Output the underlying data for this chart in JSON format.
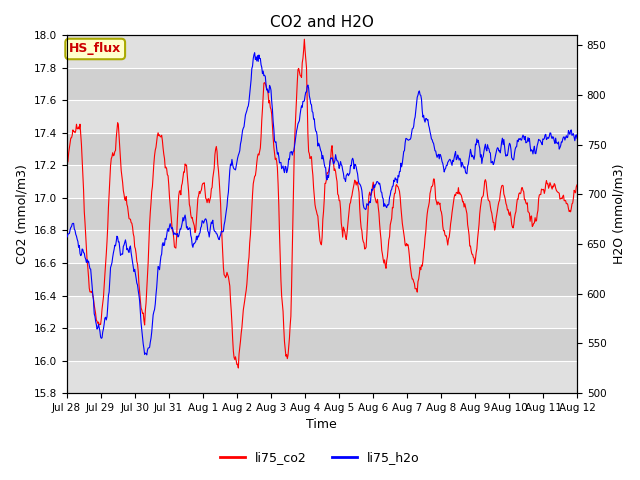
{
  "title": "CO2 and H2O",
  "xlabel": "Time",
  "ylabel_left": "CO2 (mmol/m3)",
  "ylabel_right": "H2O (mmol/m3)",
  "co2_color": "#ff0000",
  "h2o_color": "#0000ff",
  "co2_linewidth": 0.8,
  "h2o_linewidth": 0.8,
  "ylim_left": [
    15.8,
    18.0
  ],
  "ylim_right": [
    500,
    860
  ],
  "yticks_left": [
    15.8,
    16.0,
    16.2,
    16.4,
    16.6,
    16.8,
    17.0,
    17.2,
    17.4,
    17.6,
    17.8,
    18.0
  ],
  "yticks_right": [
    500,
    550,
    600,
    650,
    700,
    750,
    800,
    850
  ],
  "xtick_labels": [
    "Jul 28",
    "Jul 29",
    "Jul 30",
    "Jul 31",
    "Aug 1",
    "Aug 2",
    "Aug 3",
    "Aug 4",
    "Aug 5",
    "Aug 6",
    "Aug 7",
    "Aug 8",
    "Aug 9",
    "Aug 10",
    "Aug 11",
    "Aug 12"
  ],
  "legend_labels": [
    "li75_co2",
    "li75_h2o"
  ],
  "annotation_text": "HS_flux",
  "annotation_bg": "#ffffcc",
  "annotation_border": "#aaaa00",
  "background_color": "#ffffff",
  "band_colors": [
    "#e0e0e0",
    "#d0d0d0"
  ],
  "grid_color": "#ffffff",
  "title_fontsize": 11,
  "axis_fontsize": 9,
  "tick_fontsize": 7.5,
  "legend_fontsize": 9
}
